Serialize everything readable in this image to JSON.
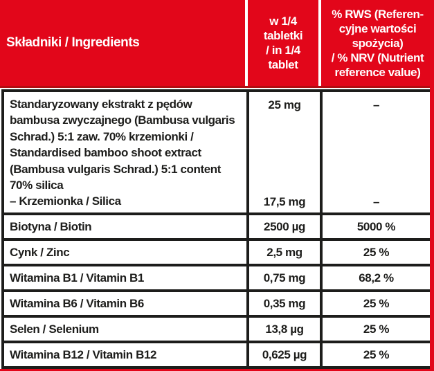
{
  "colors": {
    "red": "#e2061a",
    "dark_red": "#b20d12",
    "black": "#1d1d1b",
    "white": "#ffffff"
  },
  "table": {
    "header": {
      "ingredients": "Składniki / Ingredients",
      "per_tablet": "w 1/4\ntabletki\n/ in 1/4\ntablet",
      "rws_nrv": "% RWS (Referen-\ncyjne wartości\nspożycia)\n/ % NRV (Nutrient\nreference value)"
    },
    "bamboo_row": {
      "name": "Standaryzowany ekstrakt z pędów\nbambusa zwyczajnego (Bambusa vulgaris\nSchrad.) 5:1 zaw. 70% krzemionki /\nStandardised bamboo shoot extract\n(Bambusa vulgaris Schrad.) 5:1 content\n70% silica\n– Krzemionka / Silica",
      "amount_top": "25 mg",
      "amount_bottom": "17,5 mg",
      "rws_top": "–",
      "rws_bottom": "–"
    },
    "rows": [
      {
        "name": "Biotyna / Biotin",
        "amount": "2500 µg",
        "rws": "5000 %"
      },
      {
        "name": "Cynk / Zinc",
        "amount": "2,5 mg",
        "rws": "25 %"
      },
      {
        "name": "Witamina B1 / Vitamin B1",
        "amount": "0,75 mg",
        "rws": "68,2 %"
      },
      {
        "name": "Witamina B6 / Vitamin B6",
        "amount": "0,35 mg",
        "rws": "25 %"
      },
      {
        "name": "Selen / Selenium",
        "amount": "13,8 µg",
        "rws": "25 %"
      },
      {
        "name": "Witamina B12 / Vitamin B12",
        "amount": "0,625 µg",
        "rws": "25 %"
      }
    ]
  }
}
